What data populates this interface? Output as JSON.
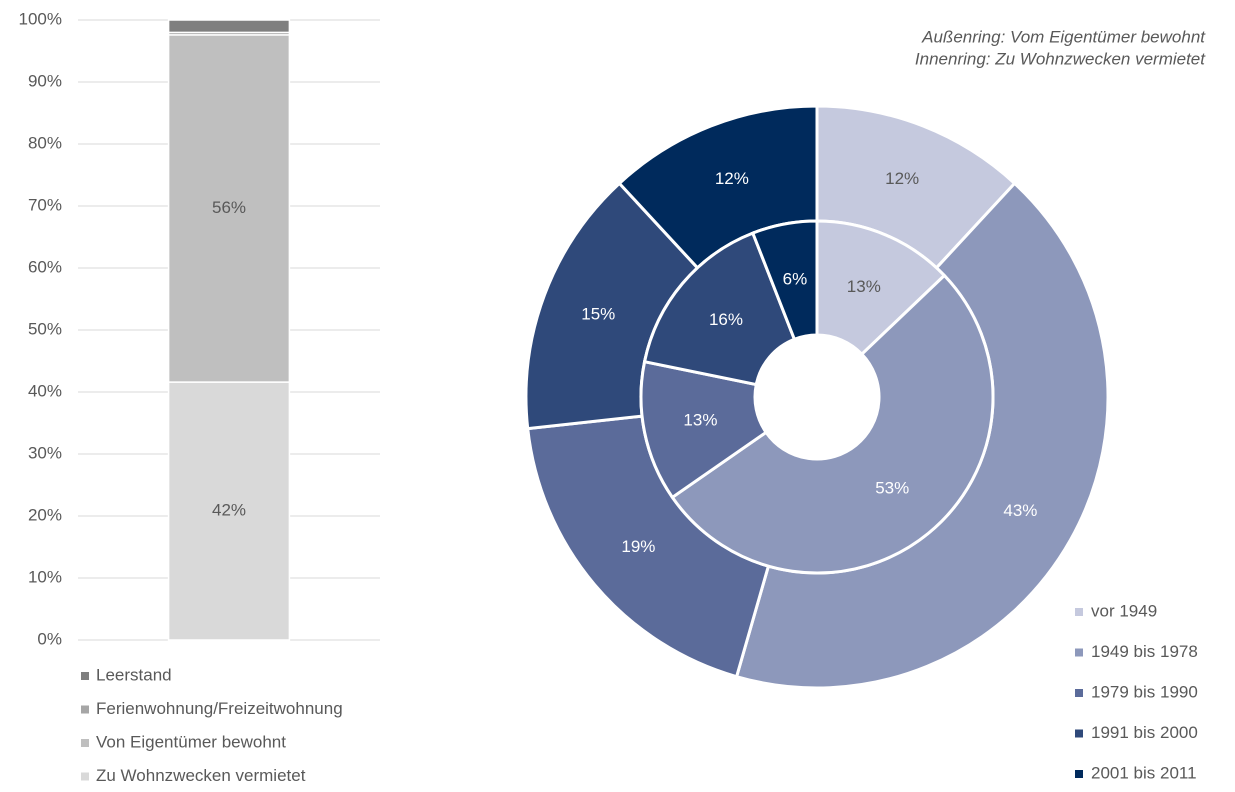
{
  "chart_data": [
    {
      "type": "bar",
      "stacked": true,
      "categories": [
        null
      ],
      "series": [
        {
          "name": "Zu Wohnzwecken vermietet",
          "color": "#d9d9d9",
          "values": [
            41.6
          ],
          "value_labels": [
            "42%"
          ]
        },
        {
          "name": "Von Eigentümer bewohnt",
          "color": "#bfbfbf",
          "values": [
            56
          ],
          "value_labels": [
            "56%"
          ]
        },
        {
          "name": "Ferienwohnung/Freizeitwohnung",
          "color": "#a6a6a6",
          "values": [
            0.4
          ]
        },
        {
          "name": "Leerstand",
          "color": "#7f7f7f",
          "values": [
            2
          ]
        }
      ],
      "ylim": [
        0,
        100
      ],
      "yticks": [
        {
          "value": 0,
          "label": "0%"
        },
        {
          "value": 10,
          "label": "10%"
        },
        {
          "value": 20,
          "label": "20%"
        },
        {
          "value": 30,
          "label": "30%"
        },
        {
          "value": 40,
          "label": "40%"
        },
        {
          "value": 50,
          "label": "50%"
        },
        {
          "value": 60,
          "label": "60%"
        },
        {
          "value": 70,
          "label": "70%"
        },
        {
          "value": 80,
          "label": "80%"
        },
        {
          "value": 90,
          "label": "90%"
        },
        {
          "value": 100,
          "label": "100%"
        }
      ],
      "grid": true,
      "legend": "bottom"
    },
    {
      "type": "donut",
      "annotations": [
        "Außenring: Vom Eigentümer bewohnt",
        "Innenring: Zu Wohnzwecken vermietet"
      ],
      "categories": [
        "vor 1949",
        "1949 bis 1978",
        "1979 bis 1990",
        "1991 bis 2000",
        "2001 bis 2011"
      ],
      "colors": [
        "#c5c9de",
        "#8d98bb",
        "#5b6b9a",
        "#2f497a",
        "#002a5c"
      ],
      "series": [
        {
          "ring": "outer",
          "values": [
            12,
            43,
            19,
            15,
            12
          ],
          "value_labels": [
            "12%",
            "43%",
            "19%",
            "15%",
            "12%"
          ]
        },
        {
          "ring": "inner",
          "values": [
            13,
            53,
            13,
            16,
            6
          ],
          "value_labels": [
            "13%",
            "53%",
            "13%",
            "16%",
            "6%"
          ]
        }
      ],
      "legend": "bottom-right"
    }
  ]
}
